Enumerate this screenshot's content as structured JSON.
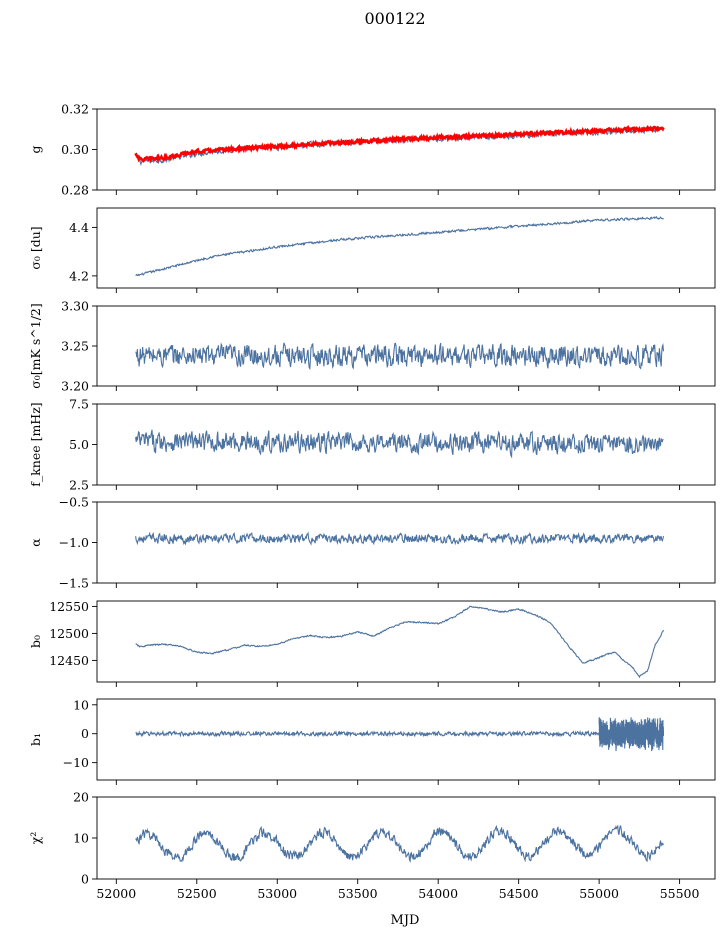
{
  "figure": {
    "title": "000122",
    "xlabel": "MJD"
  },
  "colors": {
    "series": "#4c72a0",
    "fit": "#ff0000",
    "axis": "#000000"
  },
  "chart_data": [
    {
      "type": "line",
      "id": "g",
      "ylabel": "g",
      "xlim": [
        51880,
        55720
      ],
      "ylim": [
        0.28,
        0.32
      ],
      "yticks": [
        0.28,
        0.3,
        0.32
      ],
      "ytick_labels": [
        "0.28",
        "0.30",
        "0.32"
      ],
      "series": [
        {
          "color": "#4c72a0",
          "x": [
            52120,
            52150,
            52300,
            52500,
            52700,
            53000,
            53300,
            53600,
            53900,
            54200,
            54500,
            54800,
            55100,
            55400
          ],
          "values": [
            0.297,
            0.294,
            0.295,
            0.298,
            0.3,
            0.301,
            0.303,
            0.304,
            0.305,
            0.306,
            0.307,
            0.308,
            0.309,
            0.31
          ],
          "noise": 0.0012
        },
        {
          "color": "#ff0000",
          "x": [
            52120,
            52150,
            52300,
            52500,
            52700,
            53000,
            53300,
            53600,
            53900,
            54200,
            54500,
            54800,
            55100,
            55400
          ],
          "values": [
            0.298,
            0.295,
            0.296,
            0.299,
            0.3,
            0.3015,
            0.303,
            0.3045,
            0.3055,
            0.3065,
            0.3075,
            0.3085,
            0.3095,
            0.3105
          ],
          "noise": 0.0007
        }
      ]
    },
    {
      "type": "line",
      "id": "sigma0-du",
      "ylabel": "σ₀ [du]",
      "xlim": [
        51880,
        55720
      ],
      "ylim": [
        4.15,
        4.48
      ],
      "yticks": [
        4.2,
        4.4
      ],
      "ytick_labels": [
        "4.2",
        "4.4"
      ],
      "series": [
        {
          "color": "#4c72a0",
          "x": [
            52120,
            52300,
            52600,
            53000,
            53400,
            53800,
            54200,
            54600,
            55000,
            55400
          ],
          "values": [
            4.2,
            4.23,
            4.28,
            4.32,
            4.35,
            4.37,
            4.39,
            4.41,
            4.43,
            4.44
          ],
          "noise": 0.004
        }
      ]
    },
    {
      "type": "line",
      "id": "sigma0-mk",
      "ylabel": "σ₀[mK s^1/2]",
      "xlim": [
        51880,
        55720
      ],
      "ylim": [
        3.2,
        3.3
      ],
      "yticks": [
        3.2,
        3.25,
        3.3
      ],
      "ytick_labels": [
        "3.20",
        "3.25",
        "3.30"
      ],
      "series": [
        {
          "color": "#4c72a0",
          "x": [
            52120,
            55400
          ],
          "values": [
            3.238,
            3.238
          ],
          "noise": 0.012
        }
      ]
    },
    {
      "type": "line",
      "id": "fknee",
      "ylabel": "f_knee [mHz]",
      "xlim": [
        51880,
        55720
      ],
      "ylim": [
        2.5,
        7.5
      ],
      "yticks": [
        2.5,
        5.0,
        7.5
      ],
      "ytick_labels": [
        "2.5",
        "5.0",
        "7.5"
      ],
      "series": [
        {
          "color": "#4c72a0",
          "x": [
            52120,
            55400
          ],
          "values": [
            5.2,
            5.0
          ],
          "noise": 0.55
        }
      ]
    },
    {
      "type": "line",
      "id": "alpha",
      "ylabel": "α",
      "xlim": [
        51880,
        55720
      ],
      "ylim": [
        -1.5,
        -0.5
      ],
      "yticks": [
        -1.5,
        -1.0,
        -0.5
      ],
      "ytick_labels": [
        "−1.5",
        "−1.0",
        "−0.5"
      ],
      "series": [
        {
          "color": "#4c72a0",
          "x": [
            52120,
            55400
          ],
          "values": [
            -0.95,
            -0.95
          ],
          "noise": 0.05
        }
      ]
    },
    {
      "type": "line",
      "id": "b0",
      "ylabel": "b₀",
      "xlim": [
        51880,
        55720
      ],
      "ylim": [
        12410,
        12560
      ],
      "yticks": [
        12450,
        12500,
        12550
      ],
      "ytick_labels": [
        "12450",
        "12500",
        "12550"
      ],
      "series": [
        {
          "color": "#4c72a0",
          "x": [
            52120,
            52150,
            52200,
            52300,
            52400,
            52500,
            52600,
            52700,
            52800,
            52900,
            53000,
            53100,
            53200,
            53300,
            53400,
            53500,
            53600,
            53700,
            53800,
            53900,
            54000,
            54100,
            54200,
            54300,
            54400,
            54500,
            54600,
            54700,
            54800,
            54900,
            55000,
            55050,
            55100,
            55150,
            55200,
            55250,
            55300,
            55350,
            55400
          ],
          "values": [
            12480,
            12475,
            12478,
            12480,
            12476,
            12465,
            12463,
            12470,
            12478,
            12476,
            12480,
            12490,
            12496,
            12492,
            12495,
            12503,
            12495,
            12510,
            12522,
            12520,
            12518,
            12530,
            12550,
            12545,
            12540,
            12545,
            12535,
            12520,
            12480,
            12445,
            12455,
            12462,
            12465,
            12450,
            12440,
            12420,
            12430,
            12480,
            12505
          ],
          "noise": 1.2
        }
      ]
    },
    {
      "type": "line",
      "id": "b1",
      "ylabel": "b₁",
      "xlim": [
        51880,
        55720
      ],
      "ylim": [
        -16,
        12
      ],
      "yticks": [
        -10,
        0,
        10
      ],
      "ytick_labels": [
        "−10",
        "0",
        "10"
      ],
      "series": [
        {
          "color": "#4c72a0",
          "x": [
            52120,
            55000
          ],
          "values": [
            0,
            0
          ],
          "noise": 0.6
        },
        {
          "color": "#4c72a0",
          "x": [
            55000,
            55400
          ],
          "values": [
            0,
            0
          ],
          "noise": 4.5
        }
      ]
    },
    {
      "type": "line",
      "id": "chi2",
      "ylabel": "χ²",
      "xlim": [
        51880,
        55720
      ],
      "ylim": [
        0,
        20
      ],
      "yticks": [
        0,
        10,
        20
      ],
      "ytick_labels": [
        "0",
        "10",
        "20"
      ],
      "xticks": [
        52000,
        52500,
        53000,
        53500,
        54000,
        54500,
        55000,
        55500
      ],
      "xtick_labels": [
        "52000",
        "52500",
        "53000",
        "53500",
        "54000",
        "54500",
        "55000",
        "55500"
      ],
      "series": [
        {
          "color": "#4c72a0",
          "x": [
            52120,
            55400
          ],
          "values": [
            8,
            9
          ],
          "noise": 1.1,
          "periodic": {
            "period": 365.25,
            "amplitude": 3.0
          }
        }
      ]
    }
  ]
}
